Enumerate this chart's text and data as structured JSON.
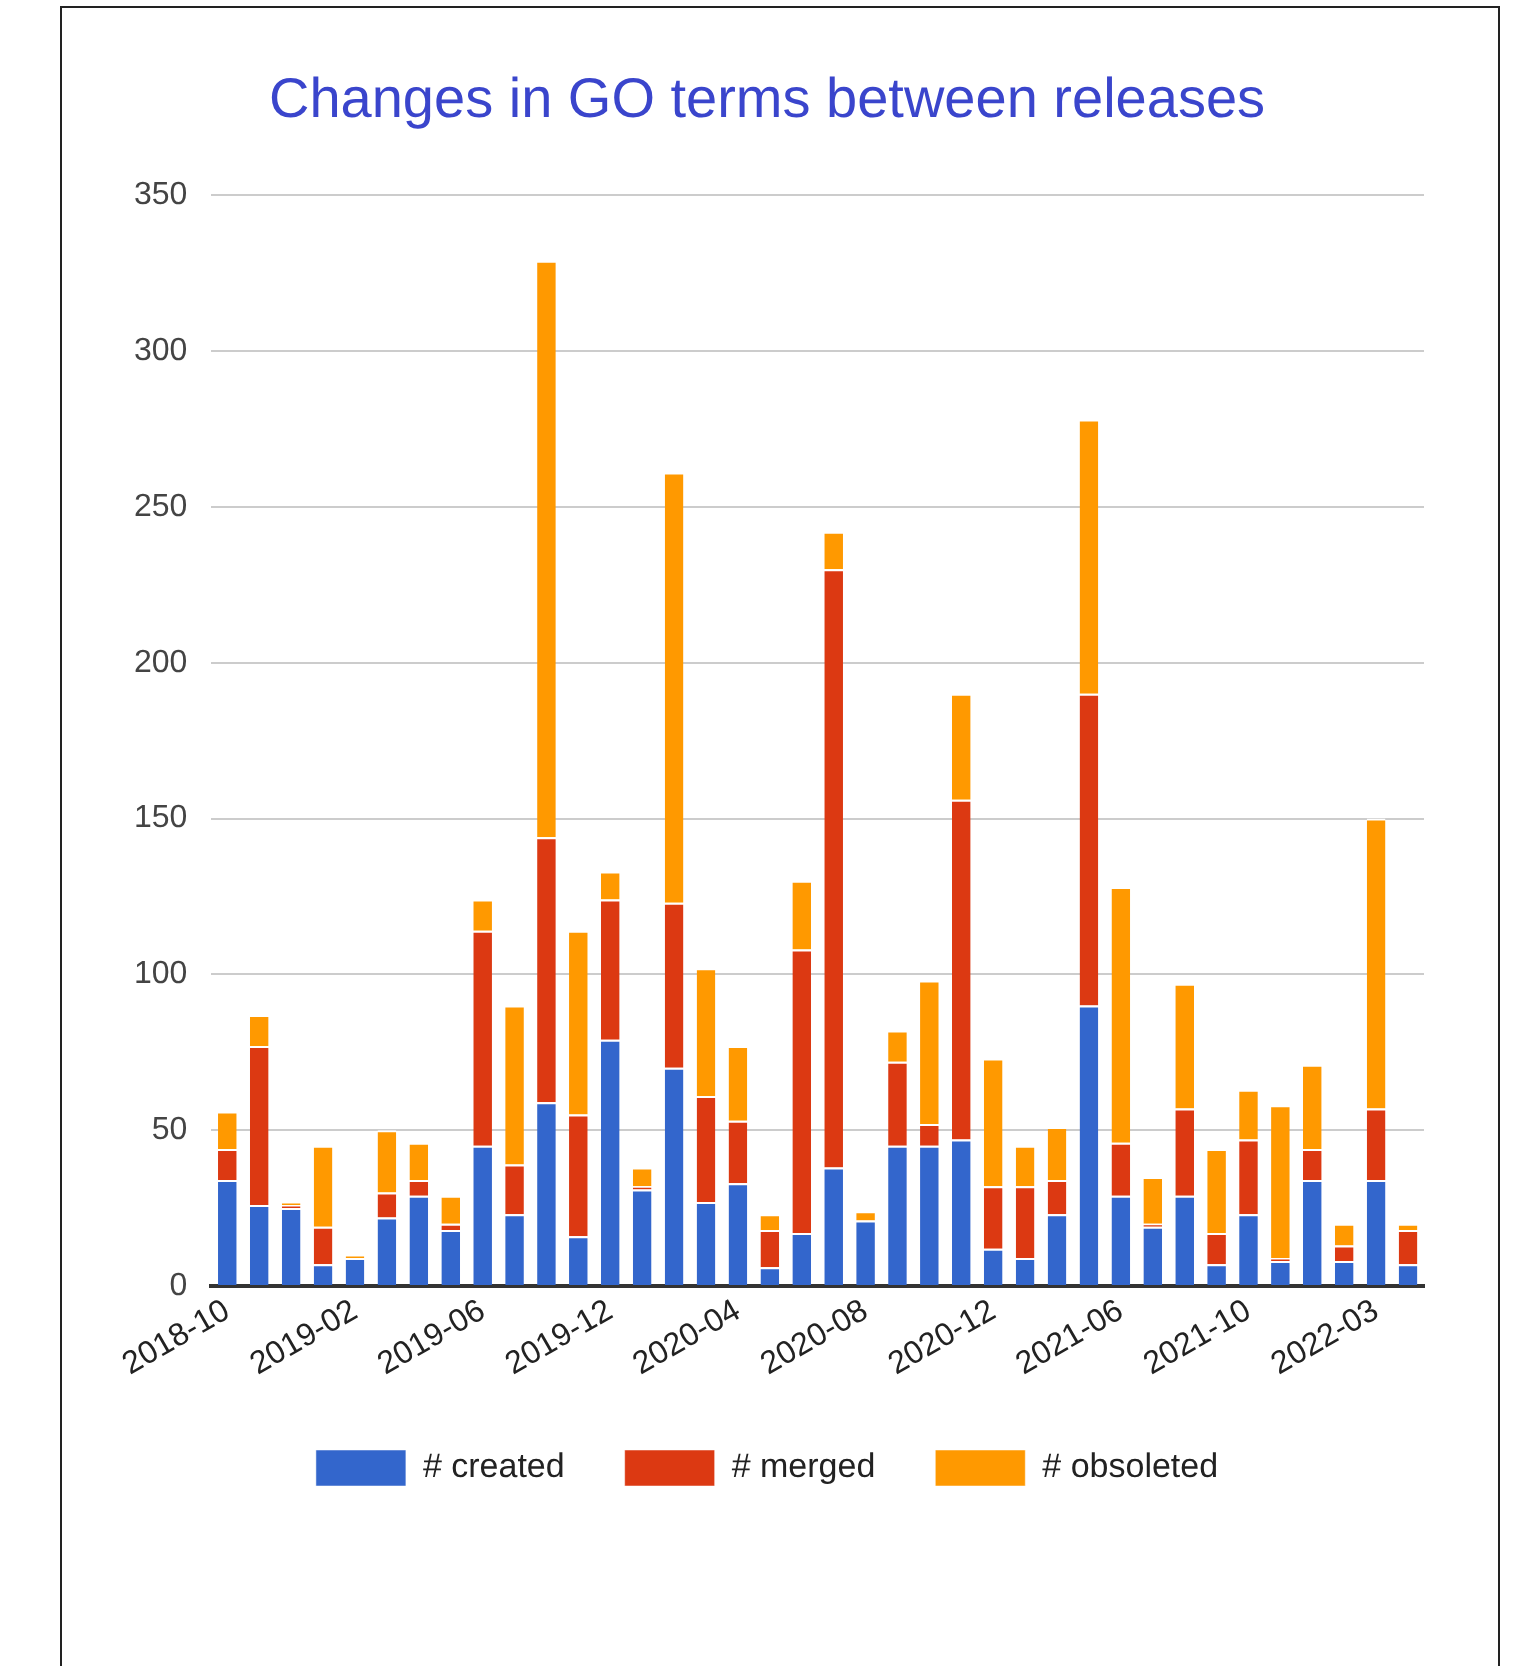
{
  "chart_data": {
    "type": "bar",
    "title": "Changes in GO terms between releases",
    "stacked": true,
    "grid": "y",
    "legend": "bottom",
    "categories": [
      "2018-10",
      null,
      null,
      null,
      "2019-02",
      null,
      null,
      null,
      "2019-06",
      null,
      null,
      null,
      "2019-12",
      null,
      null,
      null,
      "2020-04",
      null,
      null,
      null,
      "2020-08",
      null,
      null,
      null,
      "2020-12",
      null,
      null,
      null,
      "2021-06",
      null,
      null,
      null,
      "2021-10",
      null,
      null,
      null,
      "2022-03",
      null
    ],
    "ylim": [
      0,
      350
    ],
    "yticks": [
      0,
      50,
      100,
      150,
      200,
      250,
      300,
      350
    ],
    "series": [
      {
        "name": "# created",
        "color": "#3366cc",
        "values": [
          34,
          26,
          25,
          7,
          9,
          22,
          29,
          18,
          45,
          23,
          59,
          16,
          79,
          31,
          70,
          27,
          33,
          6,
          17,
          38,
          21,
          45,
          45,
          47,
          12,
          9,
          23,
          90,
          29,
          19,
          29,
          7,
          23,
          8,
          34,
          8,
          34,
          7
        ]
      },
      {
        "name": "# merged",
        "color": "#dc3912",
        "values": [
          10,
          51,
          1,
          12,
          0,
          8,
          5,
          2,
          69,
          16,
          85,
          39,
          45,
          1,
          53,
          34,
          20,
          12,
          91,
          192,
          0,
          27,
          7,
          109,
          20,
          23,
          11,
          100,
          17,
          1,
          28,
          10,
          24,
          1,
          10,
          5,
          23,
          11
        ]
      },
      {
        "name": "# obsoleted",
        "color": "#ff9900",
        "values": [
          12,
          10,
          1,
          26,
          1,
          20,
          12,
          9,
          10,
          51,
          185,
          59,
          9,
          6,
          138,
          41,
          24,
          5,
          22,
          12,
          3,
          10,
          46,
          34,
          41,
          13,
          17,
          88,
          82,
          15,
          40,
          27,
          16,
          49,
          27,
          7,
          93,
          2
        ]
      }
    ]
  }
}
